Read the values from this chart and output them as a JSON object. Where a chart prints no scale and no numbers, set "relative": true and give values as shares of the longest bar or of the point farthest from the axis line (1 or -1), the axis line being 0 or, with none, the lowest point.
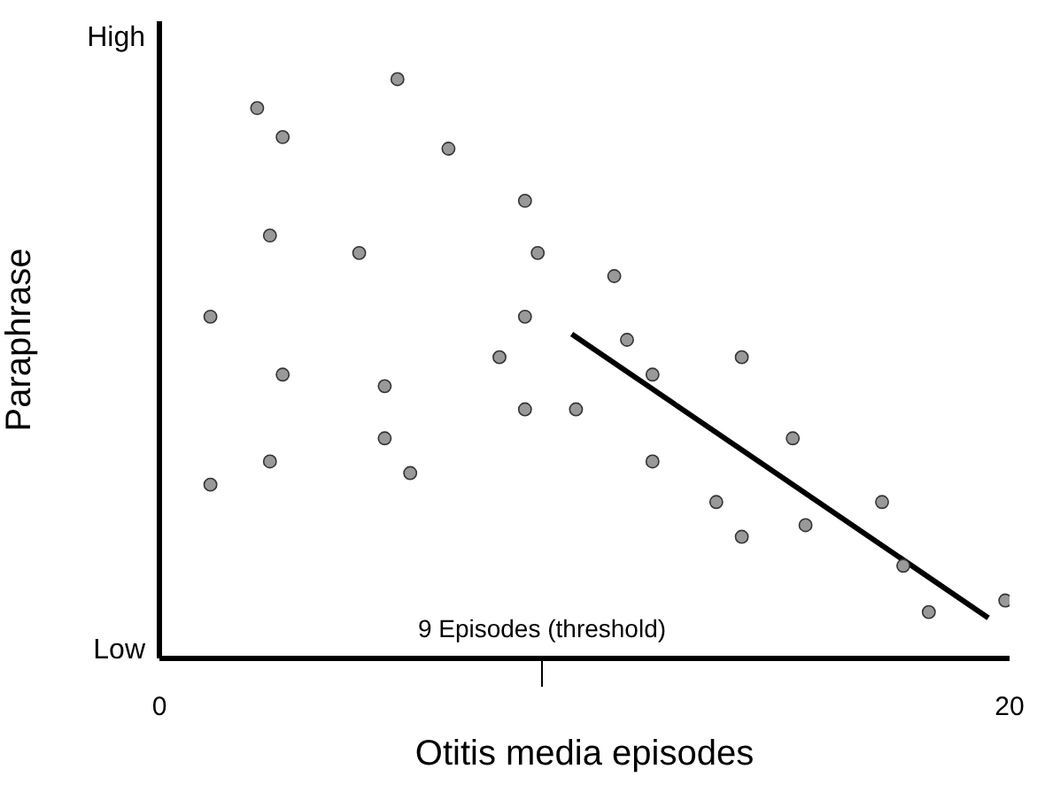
{
  "chart_data": {
    "type": "scatter",
    "xlabel": "Otitis media episodes",
    "ylabel": "Paraphrase",
    "relative": true,
    "xlim": [
      0,
      20
    ],
    "xticks": [
      0,
      {
        "value": 9,
        "label": null
      },
      20
    ],
    "annotations": [
      "High",
      "Low",
      {
        "text": "9 Episodes (threshold)",
        "x": 9
      }
    ],
    "grid": false,
    "legend": false,
    "series": [
      {
        "color": "#999999",
        "marker": "circle",
        "x": [
          1.2,
          1.2,
          2.3,
          2.9,
          2.6,
          2.9,
          2.6,
          5.6,
          6.8,
          4.7,
          5.3,
          5.3,
          5.9,
          8.0,
          8.6,
          8.9,
          8.6,
          8.6,
          9.8,
          10.7,
          11.0,
          11.6,
          11.6,
          13.1,
          13.7,
          13.7,
          14.9,
          15.2,
          17.0,
          17.5,
          18.1,
          19.9
        ],
        "values": [
          0.59,
          0.3,
          0.95,
          0.9,
          0.73,
          0.49,
          0.34,
          1,
          0.88,
          0.7,
          0.47,
          0.38,
          0.32,
          0.52,
          0.79,
          0.7,
          0.59,
          0.43,
          0.43,
          0.66,
          0.55,
          0.49,
          0.34,
          0.27,
          0.52,
          0.21,
          0.38,
          0.23,
          0.27,
          0.16,
          0.08,
          0.1
        ]
      },
      {
        "type": "line",
        "color": "#000000",
        "marker": "none",
        "line_style": "solid",
        "x": [
          9.7,
          19.5
        ],
        "values": [
          0.56,
          0.07
        ]
      }
    ]
  }
}
